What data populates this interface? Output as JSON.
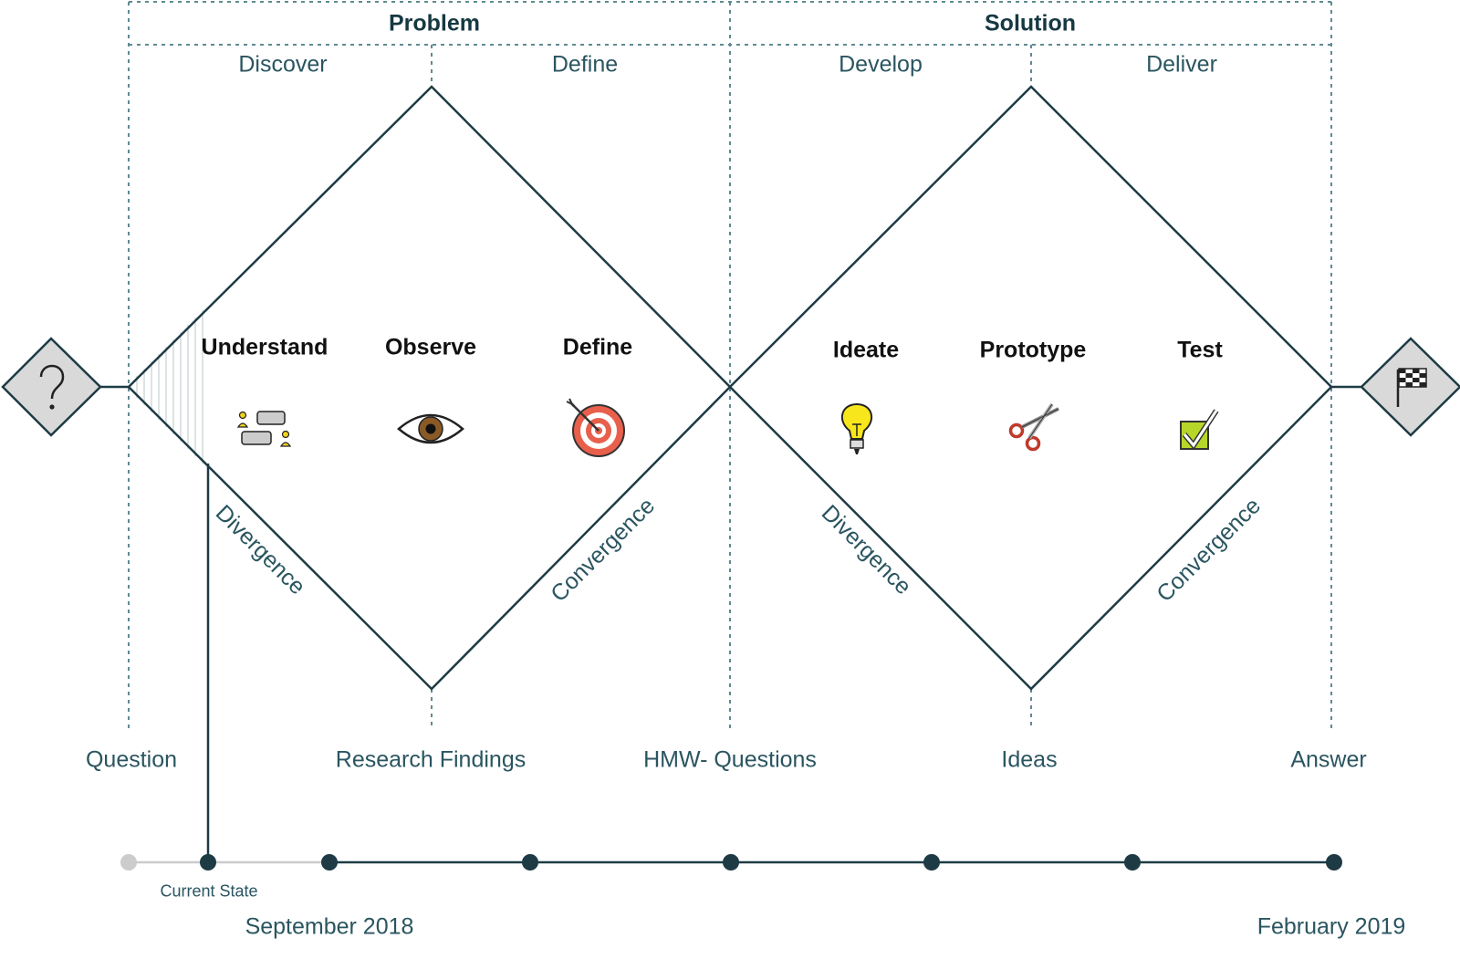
{
  "phases": [
    {
      "title": "Problem",
      "stages": [
        "Discover",
        "Define"
      ]
    },
    {
      "title": "Solution",
      "stages": [
        "Develop",
        "Deliver"
      ]
    }
  ],
  "steps": [
    {
      "label": "Understand",
      "icon": "people-chat-icon"
    },
    {
      "label": "Observe",
      "icon": "eye-icon"
    },
    {
      "label": "Define",
      "icon": "target-icon"
    },
    {
      "label": "Ideate",
      "icon": "lightbulb-icon"
    },
    {
      "label": "Prototype",
      "icon": "scissors-icon"
    },
    {
      "label": "Test",
      "icon": "checkbox-icon"
    }
  ],
  "edge_labels": {
    "diamond1_left": "Divergence",
    "diamond1_right": "Convergence",
    "diamond2_left": "Divergence",
    "diamond2_right": "Convergence"
  },
  "outputs": [
    "Question",
    "Research Findings",
    "HMW- Questions",
    "Ideas",
    "Answer"
  ],
  "endpoints": {
    "start_icon": "question-mark-icon",
    "end_icon": "checkered-flag-icon"
  },
  "timeline": {
    "current_state_label": "Current State",
    "start_date": "September 2018",
    "end_date": "February 2019",
    "milestones": 8,
    "completed": 1
  },
  "colors": {
    "line": "#1e3b45",
    "dashed": "#5f8a92",
    "inactive": "#c8c8c8",
    "endpoint_fill": "#d9d9d9"
  }
}
